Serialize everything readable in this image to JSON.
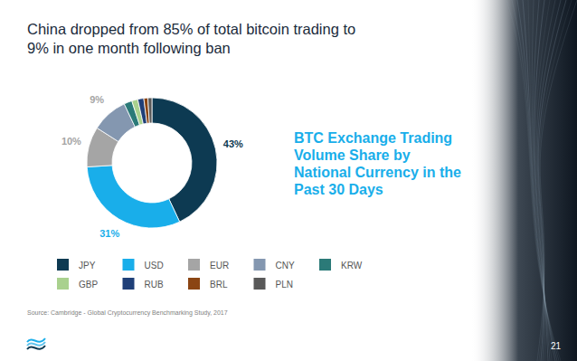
{
  "chart_data": {
    "type": "pie",
    "title": "China dropped from 85% of total bitcoin trading to 9% in one month following ban",
    "annotation": "BTC Exchange Trading Volume Share by National Currency in the Past 30 Days",
    "categories": [
      "JPY",
      "USD",
      "EUR",
      "CNY",
      "KRW",
      "GBP",
      "RUB",
      "BRL",
      "PLN"
    ],
    "values": [
      43,
      31,
      10,
      9,
      2,
      1.5,
      1.5,
      1,
      1
    ],
    "value_labels": [
      "43%",
      "31%",
      "10%",
      "9%",
      null,
      null,
      null,
      null,
      null
    ],
    "colors": [
      "#0d3a52",
      "#19aeea",
      "#a5a5a5",
      "#8497b0",
      "#2b7a78",
      "#a9d18e",
      "#1f3f78",
      "#8b4513",
      "#595959"
    ],
    "data_labels": true,
    "source": "Source: Cambridge - Global Cryptocurrency Benchmarking Study, 2017",
    "page_number": 21
  }
}
